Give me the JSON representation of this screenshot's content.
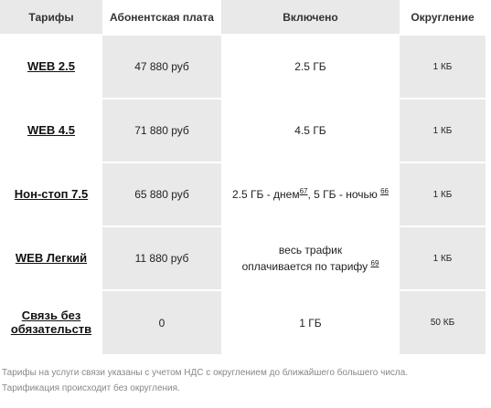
{
  "table": {
    "headers": {
      "tariff": "Тарифы",
      "fee": "Абонентская плата",
      "included": "Включено",
      "rounding": "Округление"
    },
    "rows": [
      {
        "name": "WEB 2.5",
        "fee": "47 880 руб",
        "included_a": "2.5 ГБ",
        "sup_a": "",
        "included_b": "",
        "sup_b": "",
        "rounding": "1 КБ"
      },
      {
        "name": "WEB 4.5",
        "fee": "71 880 руб",
        "included_a": "4.5 ГБ",
        "sup_a": "",
        "included_b": "",
        "sup_b": "",
        "rounding": "1 КБ"
      },
      {
        "name": "Нон-стоп 7.5",
        "fee": "65 880 руб",
        "included_a": "2.5 ГБ - днем",
        "sup_a": "67",
        "included_b": ", 5 ГБ - ночью ",
        "sup_b": "66",
        "rounding": "1 КБ"
      },
      {
        "name": "WEB Легкий",
        "fee": "11 880 руб",
        "included_line1": "весь трафик",
        "included_line2": "оплачивается по тарифу ",
        "sup_line2": "69",
        "rounding": "1 КБ"
      },
      {
        "name_line1": "Связь без",
        "name_line2": "обязательств",
        "fee": "0",
        "included_a": "1 ГБ",
        "rounding": "50 КБ"
      }
    ]
  },
  "notes": {
    "line1": "Тарифы на услуги связи указаны с учетом НДС с округлением до ближайшего большего числа.",
    "line2": "Тарификация происходит без округления."
  }
}
